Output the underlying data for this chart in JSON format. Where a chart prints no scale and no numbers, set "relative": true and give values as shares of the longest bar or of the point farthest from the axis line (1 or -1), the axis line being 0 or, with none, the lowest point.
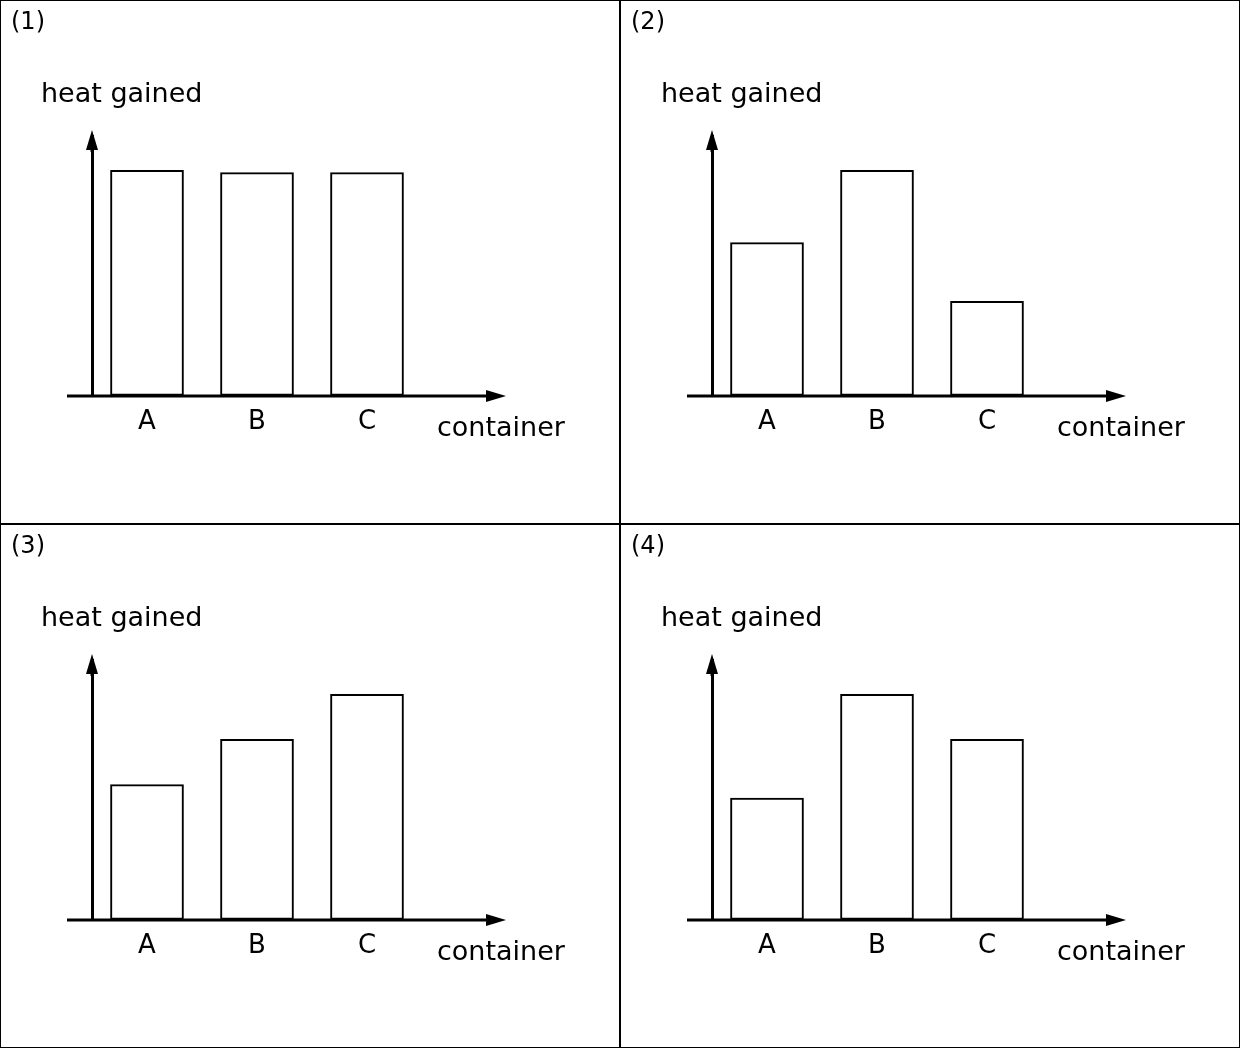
{
  "chart_data": [
    {
      "type": "bar",
      "title": "(1)",
      "ylabel": "heat gained",
      "xlabel": "container",
      "categories": [
        "A",
        "B",
        "C"
      ],
      "values": [
        1,
        0.99,
        0.99
      ],
      "color": "#000000",
      "relative": true
    },
    {
      "type": "bar",
      "title": "(2)",
      "ylabel": "heat gained",
      "xlabel": "container",
      "categories": [
        "A",
        "B",
        "C"
      ],
      "values": [
        0.68,
        1,
        0.42
      ],
      "color": "#000000",
      "relative": true
    },
    {
      "type": "bar",
      "title": "(3)",
      "ylabel": "heat gained",
      "xlabel": "container",
      "categories": [
        "A",
        "B",
        "C"
      ],
      "values": [
        0.6,
        0.8,
        1
      ],
      "color": "#000000",
      "relative": true
    },
    {
      "type": "bar",
      "title": "(4)",
      "ylabel": "heat gained",
      "xlabel": "container",
      "categories": [
        "A",
        "B",
        "C"
      ],
      "values": [
        0.54,
        1,
        0.8
      ],
      "color": "#000000",
      "relative": true
    }
  ]
}
